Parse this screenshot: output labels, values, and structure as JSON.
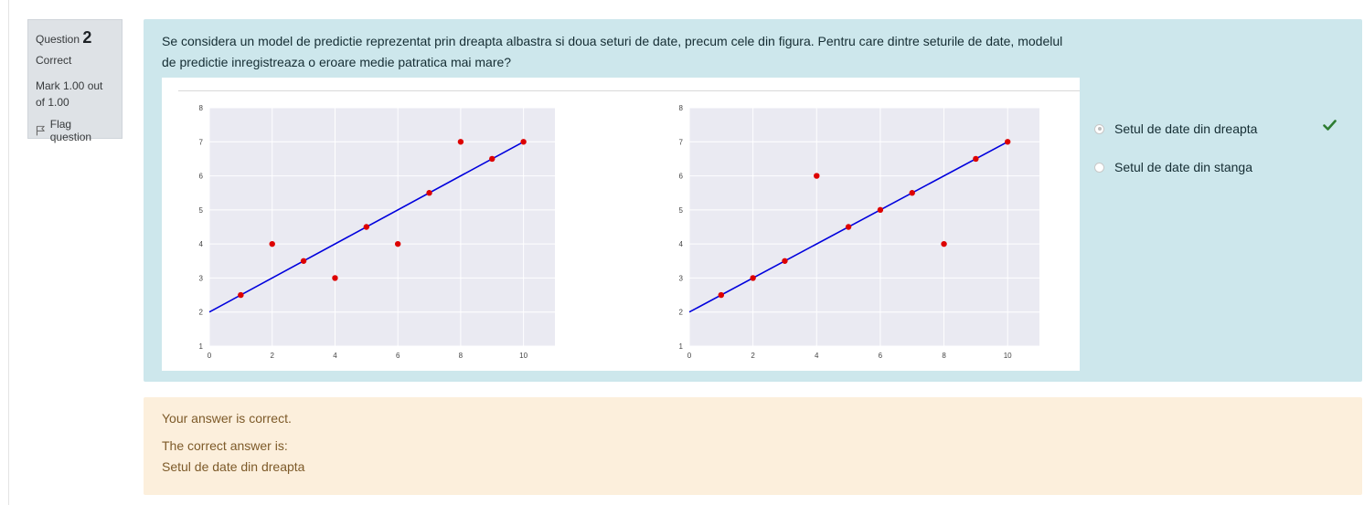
{
  "info": {
    "question_label": "Question",
    "question_number": "2",
    "state": "Correct",
    "grade": "Mark 1.00 out of 1.00",
    "flag_label": "Flag question"
  },
  "question": {
    "text": "Se considera un model de predictie reprezentat prin dreapta albastra si doua seturi de date, precum cele din figura. Pentru care dintre seturile de date, modelul de predictie inregistreaza o eroare medie patratica mai mare?"
  },
  "answers": {
    "options": [
      {
        "label": "Setul de date din dreapta",
        "selected": true,
        "correct": true
      },
      {
        "label": "Setul de date din stanga",
        "selected": false,
        "correct": false
      }
    ]
  },
  "feedback": {
    "result": "Your answer is correct.",
    "correct_answer_label": "The correct answer is:",
    "correct_answer": "Setul de date din dreapta"
  },
  "colors": {
    "line": "#0000dd",
    "points": "#dd0000",
    "plot_bg": "#eaeaf2",
    "check": "#2e7d32"
  },
  "chart_data": [
    {
      "type": "scatter",
      "xlim": [
        0,
        11
      ],
      "ylim": [
        1,
        8
      ],
      "xticks": [
        0,
        2,
        4,
        6,
        8,
        10
      ],
      "yticks": [
        1,
        2,
        3,
        4,
        5,
        6,
        7,
        8
      ],
      "line": {
        "x": [
          0,
          10
        ],
        "y": [
          2,
          7
        ]
      },
      "points": [
        {
          "x": 1,
          "y": 2.5
        },
        {
          "x": 2,
          "y": 4
        },
        {
          "x": 3,
          "y": 3.5
        },
        {
          "x": 4,
          "y": 3
        },
        {
          "x": 5,
          "y": 4.5
        },
        {
          "x": 6,
          "y": 4
        },
        {
          "x": 7,
          "y": 5.5
        },
        {
          "x": 8,
          "y": 7
        },
        {
          "x": 9,
          "y": 6.5
        },
        {
          "x": 10,
          "y": 7
        }
      ],
      "grid": true
    },
    {
      "type": "scatter",
      "xlim": [
        0,
        11
      ],
      "ylim": [
        1,
        8
      ],
      "xticks": [
        0,
        2,
        4,
        6,
        8,
        10
      ],
      "yticks": [
        1,
        2,
        3,
        4,
        5,
        6,
        7,
        8
      ],
      "line": {
        "x": [
          0,
          10
        ],
        "y": [
          2,
          7
        ]
      },
      "points": [
        {
          "x": 1,
          "y": 2.5
        },
        {
          "x": 2,
          "y": 3
        },
        {
          "x": 3,
          "y": 3.5
        },
        {
          "x": 4,
          "y": 6
        },
        {
          "x": 5,
          "y": 4.5
        },
        {
          "x": 6,
          "y": 5
        },
        {
          "x": 7,
          "y": 5.5
        },
        {
          "x": 8,
          "y": 4
        },
        {
          "x": 9,
          "y": 6.5
        },
        {
          "x": 10,
          "y": 7
        }
      ],
      "grid": true
    }
  ]
}
